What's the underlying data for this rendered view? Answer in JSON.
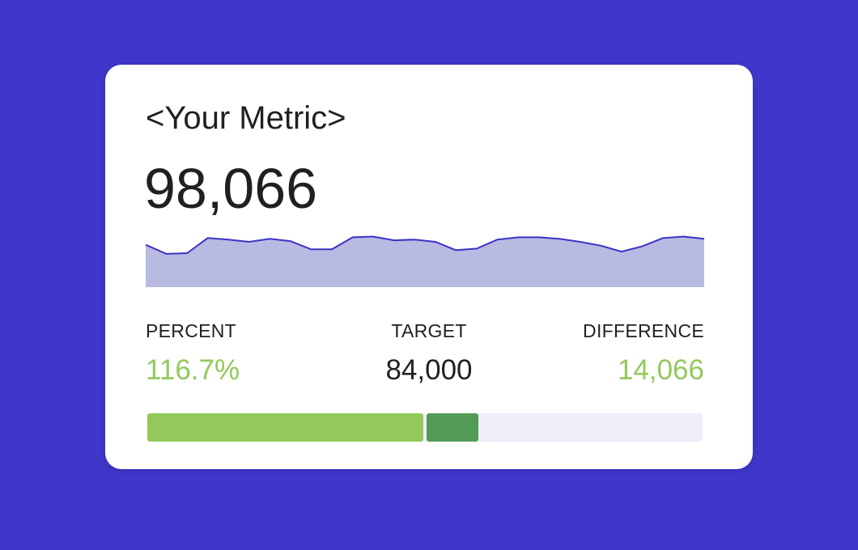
{
  "card": {
    "title": "<Your Metric>",
    "value": "98,066"
  },
  "sparkline": {
    "values": [
      56,
      44,
      45,
      65,
      63,
      60,
      64,
      61,
      50,
      50,
      66,
      67,
      62,
      63,
      60,
      49,
      51,
      63,
      66,
      66,
      64,
      60,
      55,
      47,
      54,
      65,
      67,
      64
    ],
    "line_color": "#3a33c4",
    "fill_color": "#b9bae2"
  },
  "stats": {
    "percent": {
      "label": "PERCENT",
      "value": "116.7%"
    },
    "target": {
      "label": "TARGET",
      "value": "84,000"
    },
    "difference": {
      "label": "DIFFERENCE",
      "value": "14,066"
    }
  },
  "progress": {
    "target_fraction": 0.5,
    "over_fraction": 0.0935
  },
  "colors": {
    "background": "#3f37c9",
    "positive": "#93c95a",
    "over_target": "#519b57",
    "track": "#eeeff9"
  }
}
